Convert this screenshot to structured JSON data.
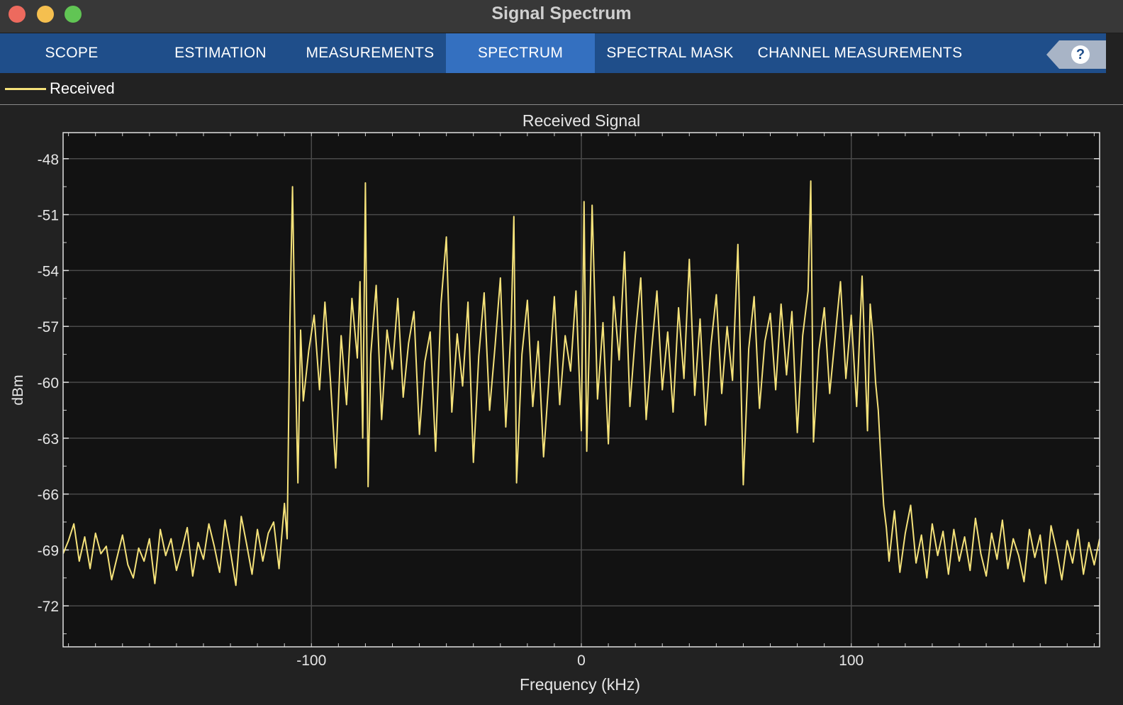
{
  "window": {
    "title": "Signal Spectrum"
  },
  "tabs": [
    {
      "label": "SCOPE",
      "active": false
    },
    {
      "label": "ESTIMATION",
      "active": false
    },
    {
      "label": "MEASUREMENTS",
      "active": false
    },
    {
      "label": "SPECTRUM",
      "active": true
    },
    {
      "label": "SPECTRAL MASK",
      "active": false
    },
    {
      "label": "CHANNEL MEASUREMENTS",
      "active": false
    }
  ],
  "help": {
    "label": "?"
  },
  "legend": {
    "label": "Received",
    "color": "#f5e27a"
  },
  "colors": {
    "trace": "#f5e27a",
    "plot_bg": "#121212",
    "grid": "#4a4a4a",
    "tab_active": "#3470c0",
    "tab_bar": "#1f4e8a"
  },
  "chart_data": {
    "type": "line",
    "title": "Received Signal",
    "xlabel": "Frequency (kHz)",
    "ylabel": "dBm",
    "xlim": [
      -192,
      192
    ],
    "ylim": [
      -74.2,
      -46.6
    ],
    "xticks": [
      -100,
      0,
      100
    ],
    "xtick_labels": [
      "-100",
      "0",
      "100"
    ],
    "yticks": [
      -48,
      -51,
      -54,
      -57,
      -60,
      -63,
      -66,
      -69,
      -72
    ],
    "ytick_labels": [
      "-48",
      "-51",
      "-54",
      "-57",
      "-60",
      "-63",
      "-66",
      "-69",
      "-72"
    ],
    "grid": true,
    "legend_position": "top-left",
    "series": [
      {
        "name": "Received",
        "points": [
          [
            -192,
            -69.2
          ],
          [
            -190,
            -68.5
          ],
          [
            -188,
            -67.6
          ],
          [
            -186,
            -69.6
          ],
          [
            -184,
            -68.3
          ],
          [
            -182,
            -70.0
          ],
          [
            -180,
            -68.1
          ],
          [
            -178,
            -69.2
          ],
          [
            -176,
            -68.8
          ],
          [
            -174,
            -70.6
          ],
          [
            -172,
            -69.4
          ],
          [
            -170,
            -68.2
          ],
          [
            -168,
            -69.8
          ],
          [
            -166,
            -70.5
          ],
          [
            -164,
            -68.9
          ],
          [
            -162,
            -69.6
          ],
          [
            -160,
            -68.4
          ],
          [
            -158,
            -70.8
          ],
          [
            -156,
            -67.9
          ],
          [
            -154,
            -69.3
          ],
          [
            -152,
            -68.4
          ],
          [
            -150,
            -70.1
          ],
          [
            -148,
            -69.0
          ],
          [
            -146,
            -67.8
          ],
          [
            -144,
            -70.4
          ],
          [
            -142,
            -68.6
          ],
          [
            -140,
            -69.5
          ],
          [
            -138,
            -67.6
          ],
          [
            -136,
            -68.8
          ],
          [
            -134,
            -70.2
          ],
          [
            -132,
            -67.4
          ],
          [
            -130,
            -69.1
          ],
          [
            -128,
            -70.9
          ],
          [
            -126,
            -67.2
          ],
          [
            -124,
            -68.7
          ],
          [
            -122,
            -70.3
          ],
          [
            -120,
            -67.9
          ],
          [
            -118,
            -69.6
          ],
          [
            -116,
            -68.1
          ],
          [
            -114,
            -67.5
          ],
          [
            -112,
            -70.0
          ],
          [
            -110,
            -66.5
          ],
          [
            -109,
            -68.4
          ],
          [
            -108,
            -57.0
          ],
          [
            -107,
            -49.5
          ],
          [
            -106,
            -58.5
          ],
          [
            -105,
            -65.4
          ],
          [
            -104,
            -57.2
          ],
          [
            -103,
            -61.0
          ],
          [
            -101,
            -58.3
          ],
          [
            -99,
            -56.4
          ],
          [
            -97,
            -60.4
          ],
          [
            -95,
            -55.7
          ],
          [
            -93,
            -59.8
          ],
          [
            -91,
            -64.6
          ],
          [
            -89,
            -57.5
          ],
          [
            -87,
            -61.2
          ],
          [
            -85,
            -55.5
          ],
          [
            -83,
            -58.7
          ],
          [
            -82,
            -54.6
          ],
          [
            -81,
            -63.0
          ],
          [
            -80,
            -49.3
          ],
          [
            -79,
            -65.6
          ],
          [
            -78,
            -58.5
          ],
          [
            -76,
            -54.8
          ],
          [
            -74,
            -62.0
          ],
          [
            -72,
            -57.2
          ],
          [
            -70,
            -59.3
          ],
          [
            -68,
            -55.5
          ],
          [
            -66,
            -60.8
          ],
          [
            -64,
            -57.9
          ],
          [
            -62,
            -56.2
          ],
          [
            -60,
            -62.8
          ],
          [
            -58,
            -58.9
          ],
          [
            -56,
            -57.3
          ],
          [
            -54,
            -63.7
          ],
          [
            -52,
            -55.8
          ],
          [
            -50,
            -52.2
          ],
          [
            -48,
            -61.6
          ],
          [
            -46,
            -57.4
          ],
          [
            -44,
            -60.2
          ],
          [
            -42,
            -55.7
          ],
          [
            -40,
            -64.3
          ],
          [
            -38,
            -58.6
          ],
          [
            -36,
            -55.2
          ],
          [
            -34,
            -61.5
          ],
          [
            -32,
            -58.1
          ],
          [
            -30,
            -54.4
          ],
          [
            -28,
            -62.4
          ],
          [
            -26,
            -57.0
          ],
          [
            -25,
            -51.1
          ],
          [
            -24,
            -65.4
          ],
          [
            -22,
            -58.5
          ],
          [
            -20,
            -55.6
          ],
          [
            -18,
            -61.3
          ],
          [
            -16,
            -57.8
          ],
          [
            -14,
            -64.0
          ],
          [
            -12,
            -59.8
          ],
          [
            -10,
            -55.4
          ],
          [
            -8,
            -61.2
          ],
          [
            -6,
            -57.5
          ],
          [
            -4,
            -59.4
          ],
          [
            -2,
            -55.1
          ],
          [
            0,
            -62.6
          ],
          [
            1,
            -50.3
          ],
          [
            2,
            -63.7
          ],
          [
            3,
            -57.4
          ],
          [
            4,
            -50.5
          ],
          [
            6,
            -60.9
          ],
          [
            8,
            -56.8
          ],
          [
            10,
            -63.3
          ],
          [
            12,
            -55.4
          ],
          [
            14,
            -58.8
          ],
          [
            16,
            -53.0
          ],
          [
            18,
            -61.3
          ],
          [
            20,
            -57.5
          ],
          [
            22,
            -54.4
          ],
          [
            24,
            -62.0
          ],
          [
            26,
            -58.3
          ],
          [
            28,
            -55.1
          ],
          [
            30,
            -60.4
          ],
          [
            32,
            -57.3
          ],
          [
            34,
            -61.6
          ],
          [
            36,
            -56.0
          ],
          [
            38,
            -59.8
          ],
          [
            40,
            -53.4
          ],
          [
            42,
            -60.7
          ],
          [
            44,
            -56.6
          ],
          [
            46,
            -62.3
          ],
          [
            48,
            -58.0
          ],
          [
            50,
            -55.3
          ],
          [
            52,
            -60.6
          ],
          [
            54,
            -57.0
          ],
          [
            56,
            -59.9
          ],
          [
            58,
            -52.6
          ],
          [
            60,
            -65.5
          ],
          [
            62,
            -58.2
          ],
          [
            64,
            -55.4
          ],
          [
            66,
            -61.4
          ],
          [
            68,
            -57.8
          ],
          [
            70,
            -56.3
          ],
          [
            72,
            -60.4
          ],
          [
            74,
            -55.8
          ],
          [
            76,
            -59.6
          ],
          [
            78,
            -56.2
          ],
          [
            80,
            -62.7
          ],
          [
            82,
            -57.5
          ],
          [
            84,
            -55.1
          ],
          [
            85,
            -49.2
          ],
          [
            86,
            -63.2
          ],
          [
            88,
            -58.3
          ],
          [
            90,
            -56.0
          ],
          [
            92,
            -60.6
          ],
          [
            94,
            -57.6
          ],
          [
            96,
            -54.6
          ],
          [
            98,
            -59.8
          ],
          [
            100,
            -56.4
          ],
          [
            102,
            -61.3
          ],
          [
            104,
            -54.3
          ],
          [
            106,
            -62.6
          ],
          [
            107,
            -55.8
          ],
          [
            108,
            -57.5
          ],
          [
            109,
            -60.0
          ],
          [
            110,
            -61.5
          ],
          [
            111,
            -64.2
          ],
          [
            112,
            -66.6
          ],
          [
            113,
            -67.8
          ],
          [
            114,
            -69.6
          ],
          [
            116,
            -66.9
          ],
          [
            118,
            -70.2
          ],
          [
            120,
            -68.1
          ],
          [
            122,
            -66.6
          ],
          [
            124,
            -69.7
          ],
          [
            126,
            -68.2
          ],
          [
            128,
            -70.5
          ],
          [
            130,
            -67.6
          ],
          [
            132,
            -69.3
          ],
          [
            134,
            -68.0
          ],
          [
            136,
            -70.3
          ],
          [
            138,
            -67.9
          ],
          [
            140,
            -69.6
          ],
          [
            142,
            -68.3
          ],
          [
            144,
            -70.1
          ],
          [
            146,
            -67.3
          ],
          [
            148,
            -69.2
          ],
          [
            150,
            -70.4
          ],
          [
            152,
            -68.1
          ],
          [
            154,
            -69.5
          ],
          [
            156,
            -67.4
          ],
          [
            158,
            -70.0
          ],
          [
            160,
            -68.4
          ],
          [
            162,
            -69.3
          ],
          [
            164,
            -70.7
          ],
          [
            166,
            -67.9
          ],
          [
            168,
            -69.4
          ],
          [
            170,
            -68.2
          ],
          [
            172,
            -70.8
          ],
          [
            174,
            -67.7
          ],
          [
            176,
            -69.0
          ],
          [
            178,
            -70.6
          ],
          [
            180,
            -68.5
          ],
          [
            182,
            -69.7
          ],
          [
            184,
            -67.9
          ],
          [
            186,
            -70.3
          ],
          [
            188,
            -68.6
          ],
          [
            190,
            -69.8
          ],
          [
            192,
            -68.4
          ]
        ]
      }
    ]
  }
}
